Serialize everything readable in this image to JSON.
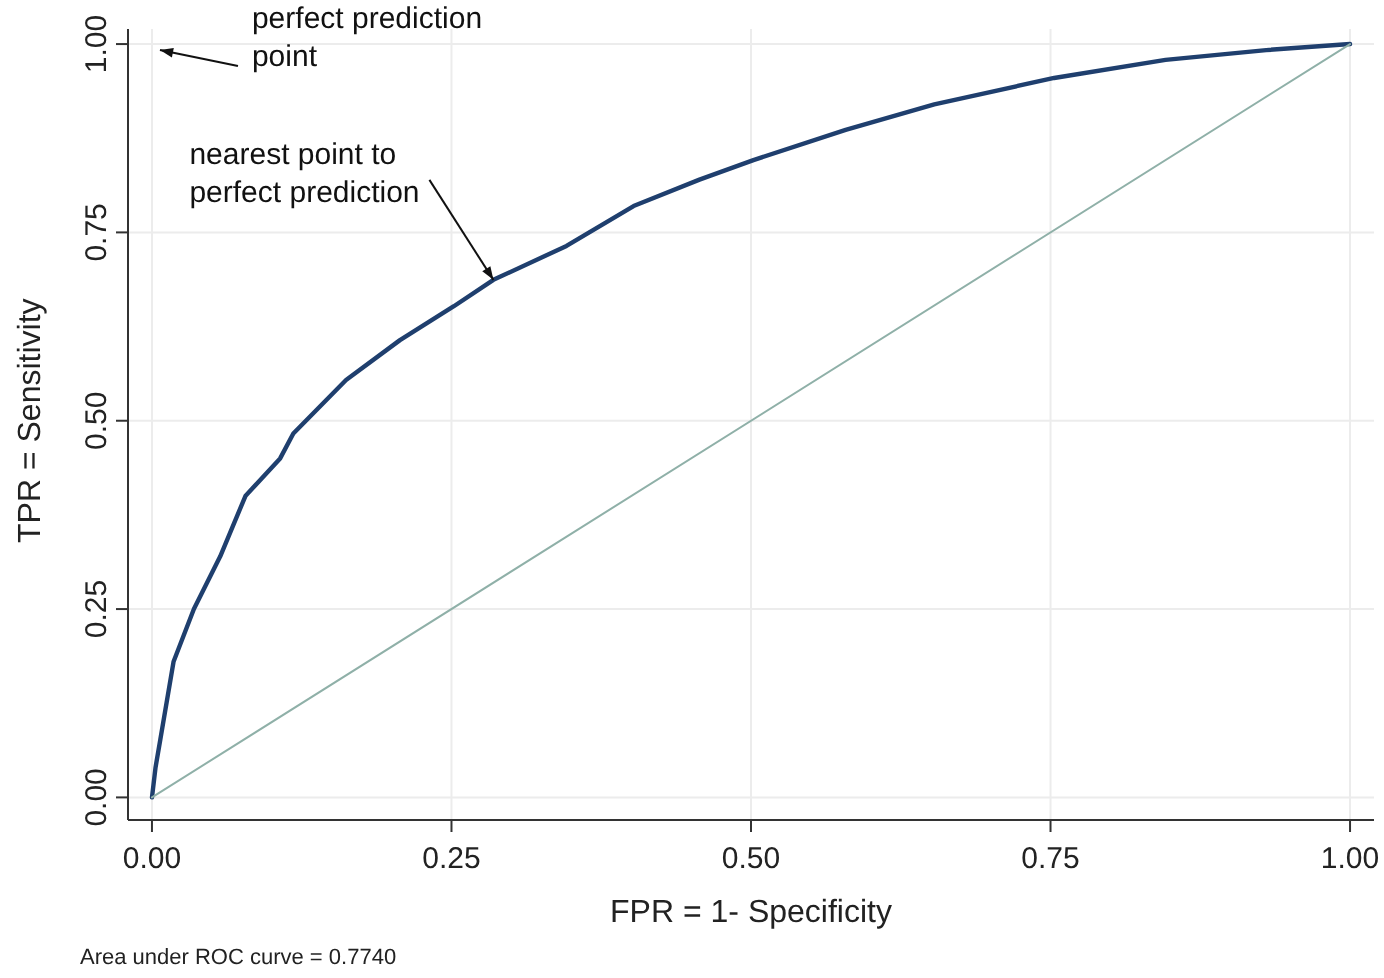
{
  "chart_data": {
    "type": "line",
    "xlabel": "FPR = 1- Specificity",
    "ylabel": "TPR = Sensitivity",
    "xlim": [
      -0.02,
      1.02
    ],
    "ylim": [
      -0.03,
      1.02
    ],
    "xticks": [
      {
        "value": 0,
        "label": "0.00"
      },
      {
        "value": 0.25,
        "label": "0.25"
      },
      {
        "value": 0.5,
        "label": "0.50"
      },
      {
        "value": 0.75,
        "label": "0.75"
      },
      {
        "value": 1,
        "label": "1.00"
      }
    ],
    "yticks": [
      {
        "value": 0,
        "label": "0.00"
      },
      {
        "value": 0.25,
        "label": "0.25"
      },
      {
        "value": 0.5,
        "label": "0.50"
      },
      {
        "value": 0.75,
        "label": "0.75"
      },
      {
        "value": 1,
        "label": "1.00"
      }
    ],
    "grid": true,
    "marker": "none",
    "series": [
      {
        "color": "#1f3f6e",
        "x": [
          0,
          0.003,
          0.007,
          0.018,
          0.035,
          0.057,
          0.078,
          0.107,
          0.118,
          0.162,
          0.207,
          0.252,
          0.285,
          0.346,
          0.402,
          0.457,
          0.502,
          0.579,
          0.653,
          0.753,
          0.846,
          0.93,
          1
        ],
        "values": [
          0,
          0.04,
          0.077,
          0.18,
          0.25,
          0.32,
          0.4,
          0.45,
          0.483,
          0.554,
          0.607,
          0.652,
          0.687,
          0.732,
          0.785,
          0.82,
          0.846,
          0.886,
          0.92,
          0.955,
          0.979,
          0.992,
          1
        ]
      },
      {
        "color": "#8fb0a8",
        "x": [
          0,
          1
        ],
        "values": [
          0,
          1
        ]
      }
    ],
    "annotations": [
      "perfect prediction point",
      {
        "text": "nearest point to perfect prediction",
        "x": 0.285,
        "y": 0.687
      },
      "Area under ROC curve = 0.7740"
    ]
  }
}
